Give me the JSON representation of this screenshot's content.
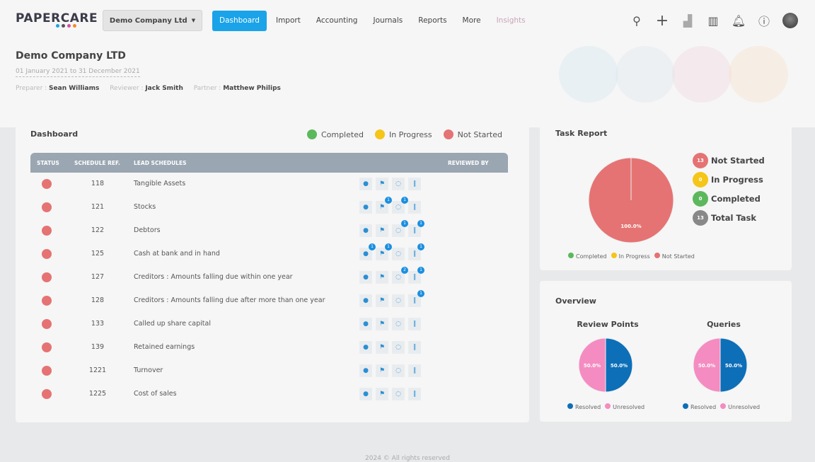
{
  "app": {
    "logo": "PAPERCARE",
    "company_selector": "Demo Company Ltd"
  },
  "nav": [
    "Dashboard",
    "Import",
    "Accounting",
    "Journals",
    "Reports",
    "More",
    "Insights"
  ],
  "header_icons": [
    "search-icon",
    "plus-icon",
    "chart-icon",
    "book-icon",
    "bell-icon",
    "help-icon",
    "avatar"
  ],
  "company": {
    "title": "Demo Company LTD",
    "period": "01 January 2021 to 31 December 2021",
    "preparer_label": "Preparer :",
    "preparer": "Sean Williams",
    "reviewer_label": "Reviewer :",
    "reviewer": "Jack Smith",
    "partner_label": "Partner :",
    "partner": "Matthew Philips"
  },
  "dashboard": {
    "title": "Dashboard",
    "legend": [
      {
        "label": "Completed",
        "color": "#5cb85c"
      },
      {
        "label": "In Progress",
        "color": "#f5c518"
      },
      {
        "label": "Not Started",
        "color": "#e57373"
      }
    ],
    "columns": [
      "STATUS",
      "SCHEDULE REF.",
      "LEAD SCHEDULES",
      "",
      "REVIEWED BY"
    ],
    "rows": [
      {
        "ref": "118",
        "name": "Tangible Assets",
        "status": "Not Started",
        "badges": [
          0,
          0,
          0,
          0
        ]
      },
      {
        "ref": "121",
        "name": "Stocks",
        "status": "Not Started",
        "badges": [
          0,
          1,
          1,
          0
        ]
      },
      {
        "ref": "122",
        "name": "Debtors",
        "status": "Not Started",
        "badges": [
          0,
          0,
          1,
          1
        ]
      },
      {
        "ref": "125",
        "name": "Cash at bank and in hand",
        "status": "Not Started",
        "badges": [
          1,
          1,
          0,
          1
        ]
      },
      {
        "ref": "127",
        "name": "Creditors : Amounts falling due within one year",
        "status": "Not Started",
        "badges": [
          0,
          0,
          2,
          1
        ]
      },
      {
        "ref": "128",
        "name": "Creditors : Amounts falling due after more than one year",
        "status": "Not Started",
        "badges": [
          0,
          0,
          0,
          1
        ]
      },
      {
        "ref": "133",
        "name": "Called up share capital",
        "status": "Not Started",
        "badges": [
          0,
          0,
          0,
          0
        ]
      },
      {
        "ref": "139",
        "name": "Retained earnings",
        "status": "Not Started",
        "badges": [
          0,
          0,
          0,
          0
        ]
      },
      {
        "ref": "1221",
        "name": "Turnover",
        "status": "Not Started",
        "badges": [
          0,
          0,
          0,
          0
        ]
      },
      {
        "ref": "1225",
        "name": "Cost of sales",
        "status": "Not Started",
        "badges": [
          0,
          0,
          0,
          0
        ]
      }
    ]
  },
  "task_report": {
    "title": "Task Report",
    "stats": [
      {
        "count": "13",
        "label": "Not Started",
        "color": "#e57373"
      },
      {
        "count": "0",
        "label": "In Progress",
        "color": "#f5c518"
      },
      {
        "count": "0",
        "label": "Completed",
        "color": "#5cb85c"
      },
      {
        "count": "13",
        "label": "Total Task",
        "color": "#888888"
      }
    ]
  },
  "overview": {
    "title": "Overview"
  },
  "chart_data": [
    {
      "type": "pie",
      "categories": [
        "Completed",
        "In Progress",
        "Not Started"
      ],
      "values": [
        0,
        0,
        100
      ],
      "colors": [
        "#5cb85c",
        "#f5c518",
        "#e57373"
      ],
      "data_labels": [
        "",
        "",
        "100.0%"
      ],
      "legend": "bottom"
    },
    {
      "type": "pie",
      "title": "Review Points",
      "categories": [
        "Resolved",
        "Unresolved"
      ],
      "values": [
        50,
        50
      ],
      "colors": [
        "#0d6fb8",
        "#f48cc1"
      ],
      "data_labels": [
        "50.0%",
        "50.0%"
      ],
      "legend": "bottom"
    },
    {
      "type": "pie",
      "title": "Queries",
      "categories": [
        "Resolved",
        "Unresolved"
      ],
      "values": [
        50,
        50
      ],
      "colors": [
        "#0d6fb8",
        "#f48cc1"
      ],
      "data_labels": [
        "50.0%",
        "50.0%"
      ],
      "legend": "bottom"
    }
  ],
  "footer": "2024 © All rights reserved"
}
